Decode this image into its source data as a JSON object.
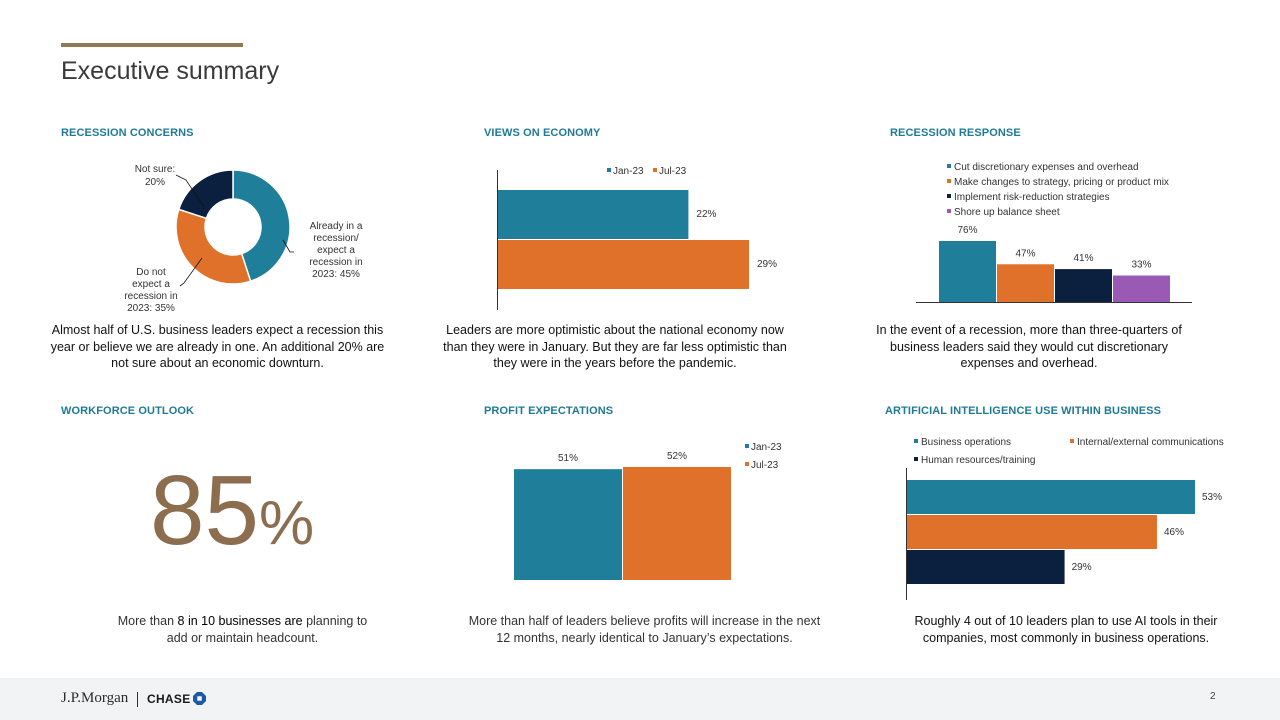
{
  "title": "Executive summary",
  "sections": {
    "recession_concerns": {
      "title": "RECESSION CONCERNS",
      "caption": "Almost half of U.S. business leaders expect a recession this year or believe we are already in one. An additional 20% are not sure about an economic downturn.",
      "labels": {
        "not_sure_1": "Not sure:",
        "not_sure_2": "20%",
        "already_1": "Already in a",
        "already_2": "recession/",
        "already_3": "expect a",
        "already_4": "recession in",
        "already_5": "2023: 45%",
        "donot_1": "Do not",
        "donot_2": "expect a",
        "donot_3": "recession in",
        "donot_4": "2023: 35%"
      }
    },
    "views_on_economy": {
      "title": "VIEWS ON ECONOMY",
      "caption": "Leaders are more optimistic about the national economy now than they were in January. But they are far less optimistic than they were in the years before the pandemic."
    },
    "recession_response": {
      "title": "RECESSION RESPONSE",
      "caption": "In the event of a recession, more than three-quarters of business leaders said they would cut discretionary expenses and overhead."
    },
    "workforce_outlook": {
      "title": "WORKFORCE OUTLOOK",
      "big_number": "85",
      "big_unit": "%",
      "caption_part1": "More than ",
      "caption_part2": "8 in 10 businesses are",
      "caption_part3": " planning to add or maintain headcount."
    },
    "profit_expectations": {
      "title": "PROFIT EXPECTATIONS",
      "caption": "More than half of leaders believe profits will increase in the next 12 months, nearly identical to January’s expectations."
    },
    "ai_use": {
      "title": "ARTIFICIAL INTELLIGENCE USE WITHIN BUSINESS",
      "caption": "Roughly 4 out of 10 leaders plan to use AI tools in their companies, most commonly in business operations."
    }
  },
  "colors": {
    "teal": "#1f7e9a",
    "orange": "#e0712a",
    "navy": "#0b1f3f",
    "purple": "#9b59b6",
    "gold": "#8f7a55"
  },
  "footer": {
    "brand": "J.P.Morgan",
    "brand2": "CHASE",
    "logo": "chase-octagon-icon",
    "page_number": "2"
  },
  "chart_data": [
    {
      "id": "recession_concerns",
      "type": "pie",
      "categories": [
        "Already in a recession/expect a recession in 2023",
        "Do not expect a recession in 2023",
        "Not sure"
      ],
      "values": [
        45,
        35,
        20
      ],
      "colors": [
        "#1f7e9a",
        "#e0712a",
        "#0b1f3f"
      ]
    },
    {
      "id": "views_on_economy",
      "type": "bar",
      "orientation": "horizontal",
      "series": [
        {
          "name": "Jan-23",
          "values": [
            22
          ],
          "color": "#1f7e9a"
        },
        {
          "name": "Jul-23",
          "values": [
            29
          ],
          "color": "#e0712a"
        }
      ],
      "xlim": [
        0,
        30
      ],
      "legend": "top"
    },
    {
      "id": "recession_response",
      "type": "bar",
      "series": [
        {
          "name": "Cut discretionary expenses and overhead",
          "values": [
            76
          ],
          "color": "#1f7e9a"
        },
        {
          "name": "Make changes to strategy, pricing or product mix",
          "values": [
            47
          ],
          "color": "#e0712a"
        },
        {
          "name": "Implement risk-reduction strategies",
          "values": [
            41
          ],
          "color": "#0b1f3f"
        },
        {
          "name": "Shore up balance sheet",
          "values": [
            33
          ],
          "color": "#9b59b6"
        }
      ],
      "ylim": [
        0,
        80
      ],
      "legend": "top"
    },
    {
      "id": "profit_expectations",
      "type": "bar",
      "series": [
        {
          "name": "Jan-23",
          "values": [
            51
          ],
          "color": "#1f7e9a"
        },
        {
          "name": "Jul-23",
          "values": [
            52
          ],
          "color": "#e0712a"
        }
      ],
      "ylim": [
        0,
        53
      ],
      "legend": "right"
    },
    {
      "id": "ai_use",
      "type": "bar",
      "orientation": "horizontal",
      "series": [
        {
          "name": "Business operations",
          "values": [
            53
          ],
          "color": "#1f7e9a"
        },
        {
          "name": "Internal/external communications",
          "values": [
            46
          ],
          "color": "#e0712a"
        },
        {
          "name": "Human resources/training",
          "values": [
            29
          ],
          "color": "#0b1f3f"
        }
      ],
      "xlim": [
        0,
        53
      ],
      "legend": "top"
    }
  ]
}
